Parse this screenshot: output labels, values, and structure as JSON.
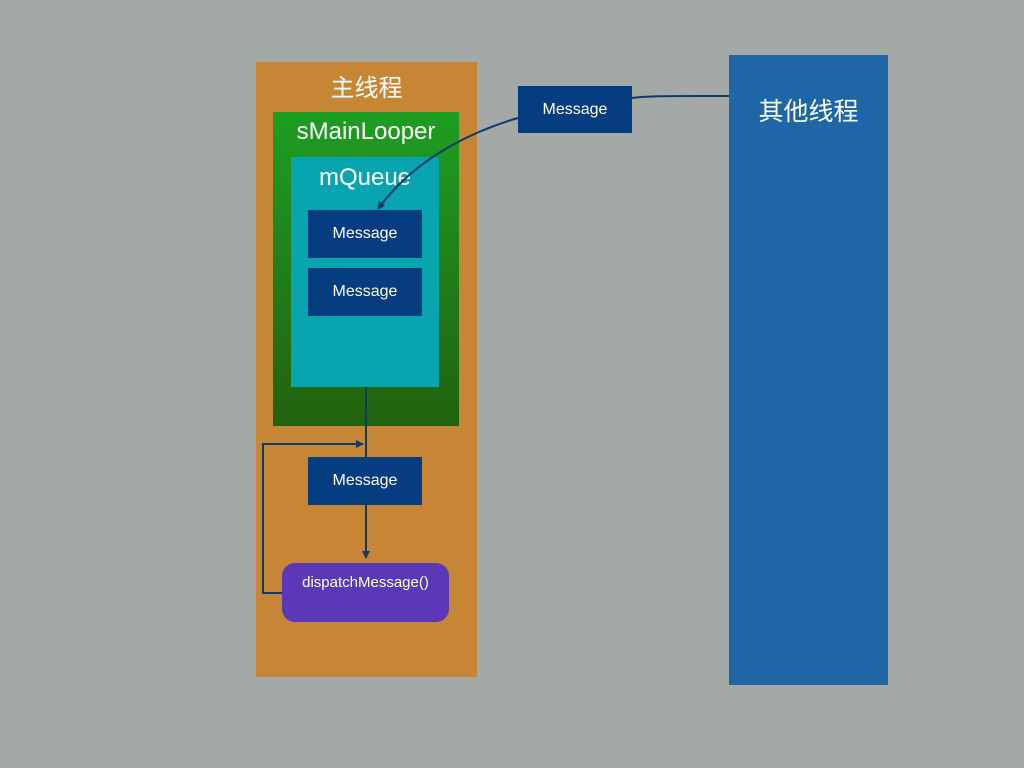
{
  "main_thread": {
    "title": "主线程"
  },
  "looper": {
    "title": "sMainLooper"
  },
  "queue": {
    "title": "mQueue",
    "messages": [
      "Message",
      "Message"
    ]
  },
  "dequeued_message": {
    "label": "Message"
  },
  "dispatch": {
    "label": "dispatchMessage()"
  },
  "incoming_message": {
    "label": "Message"
  },
  "other_thread": {
    "title": "其他线程"
  },
  "colors": {
    "background": "#a4a8a7",
    "main_thread": "#c68636",
    "looper": "#1e9e22",
    "queue": "#08a5b1",
    "message": "#063c80",
    "dispatch": "#5a38b8",
    "other_thread": "#1e66a6",
    "arrow": "#0b3b6e"
  }
}
